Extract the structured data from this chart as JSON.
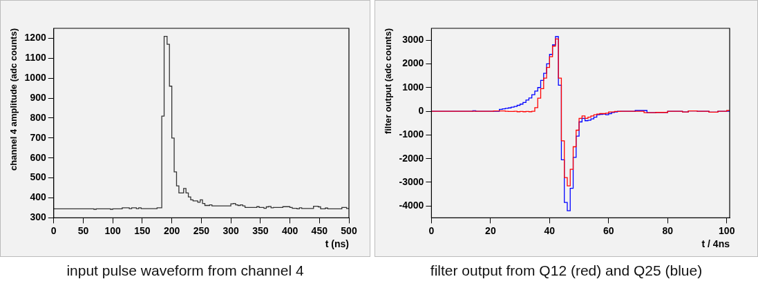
{
  "chart_data": [
    {
      "type": "histogram",
      "title": "input pulse waveform from channel 4",
      "xlabel": "t (ns)",
      "ylabel": "channel 4 amplitude (adc counts)",
      "bins": [
        0,
        68,
        72,
        96,
        100,
        116,
        128,
        132,
        140,
        144,
        148,
        175,
        183,
        187,
        192,
        196,
        200,
        204,
        208,
        212,
        220,
        224,
        228,
        232,
        236,
        244,
        248,
        252,
        256,
        264,
        268,
        300,
        304,
        308,
        312,
        316,
        320,
        324,
        344,
        348,
        356,
        360,
        364,
        368,
        372,
        388,
        400,
        404,
        412,
        416,
        420,
        440,
        448,
        452,
        460,
        464,
        488,
        496,
        500
      ],
      "values": [
        345,
        343,
        345,
        343,
        345,
        350,
        346,
        350,
        346,
        350,
        346,
        350,
        810,
        1210,
        1170,
        960,
        700,
        530,
        460,
        425,
        447,
        425,
        405,
        390,
        385,
        378,
        390,
        372,
        362,
        365,
        360,
        370,
        372,
        365,
        362,
        365,
        360,
        352,
        356,
        352,
        348,
        355,
        357,
        350,
        352,
        356,
        352,
        348,
        345,
        350,
        347,
        358,
        355,
        345,
        349,
        345,
        352,
        347
      ],
      "color": "#333333",
      "xlim": [
        0,
        500
      ],
      "xticks": [
        0,
        50,
        100,
        150,
        200,
        250,
        300,
        350,
        400,
        450,
        500
      ],
      "ylim": [
        300,
        1250
      ],
      "yticks": [
        300,
        400,
        500,
        600,
        700,
        800,
        900,
        1000,
        1100,
        1200
      ],
      "grid": false,
      "legend": false
    },
    {
      "type": "histogram",
      "title": "filter output from Q12 (red) and Q25 (blue)",
      "xlabel": "t / 4ns",
      "ylabel": "filter output (adc counts)",
      "bins": [
        0,
        1,
        2,
        3,
        4,
        5,
        6,
        7,
        8,
        9,
        10,
        11,
        12,
        13,
        14,
        15,
        16,
        17,
        18,
        19,
        20,
        21,
        22,
        23,
        24,
        25,
        26,
        27,
        28,
        29,
        30,
        31,
        32,
        33,
        34,
        35,
        36,
        37,
        38,
        39,
        40,
        41,
        42,
        43,
        44,
        45,
        46,
        47,
        48,
        49,
        50,
        51,
        52,
        53,
        54,
        55,
        56,
        57,
        58,
        59,
        60,
        61,
        62,
        63,
        64,
        65,
        66,
        67,
        68,
        69,
        70,
        71,
        72,
        73,
        74,
        75,
        76,
        77,
        78,
        79,
        80,
        81,
        82,
        83,
        84,
        85,
        86,
        87,
        88,
        89,
        90,
        91,
        92,
        93,
        94,
        95,
        96,
        97,
        98,
        99,
        100,
        101
      ],
      "series": [
        {
          "color": "#0000ff",
          "values": [
            0,
            0,
            0,
            0,
            0,
            0,
            0,
            0,
            0,
            0,
            0,
            0,
            0,
            0,
            20,
            0,
            0,
            0,
            0,
            0,
            0,
            0,
            0,
            80,
            100,
            120,
            140,
            170,
            200,
            250,
            300,
            370,
            470,
            560,
            700,
            850,
            1000,
            1300,
            1600,
            2000,
            2400,
            2800,
            3150,
            1100,
            -2050,
            -3850,
            -4200,
            -3250,
            -1950,
            -1050,
            -450,
            -300,
            -400,
            -380,
            -320,
            -250,
            -150,
            -130,
            -120,
            -150,
            -100,
            -50,
            -30,
            0,
            0,
            0,
            0,
            0,
            0,
            30,
            30,
            30,
            30,
            -60,
            -60,
            -60,
            -50,
            -50,
            -50,
            -50,
            0,
            0,
            0,
            0,
            0,
            -30,
            -30,
            10,
            10,
            10,
            0,
            0,
            0,
            0,
            -40,
            -40,
            -40,
            0,
            0,
            0,
            0
          ]
        },
        {
          "color": "#ff0000",
          "values": [
            0,
            0,
            0,
            0,
            0,
            0,
            0,
            0,
            0,
            0,
            0,
            0,
            0,
            0,
            0,
            0,
            0,
            0,
            0,
            0,
            0,
            10,
            10,
            10,
            10,
            0,
            -10,
            -10,
            0,
            -20,
            -10,
            -20,
            -10,
            -20,
            0,
            150,
            550,
            950,
            1400,
            1850,
            2300,
            2750,
            3050,
            1400,
            -1250,
            -2800,
            -3150,
            -2450,
            -1500,
            -800,
            -300,
            -200,
            -300,
            -250,
            -200,
            -150,
            -120,
            -100,
            -100,
            -80,
            -30,
            -30,
            -10,
            -10,
            0,
            0,
            0,
            0,
            0,
            0,
            0,
            0,
            -60,
            -60,
            -60,
            -60,
            -50,
            -50,
            -50,
            -50,
            0,
            0,
            0,
            0,
            0,
            -30,
            -30,
            10,
            10,
            10,
            0,
            0,
            0,
            0,
            -40,
            -40,
            -40,
            0,
            0,
            0,
            30
          ]
        }
      ],
      "xlim": [
        0,
        101
      ],
      "xticks": [
        0,
        20,
        40,
        60,
        80,
        100
      ],
      "ylim": [
        -4500,
        3500
      ],
      "yticks": [
        -4000,
        -3000,
        -2000,
        -1000,
        0,
        1000,
        2000,
        3000
      ],
      "grid": false,
      "legend": false
    }
  ]
}
